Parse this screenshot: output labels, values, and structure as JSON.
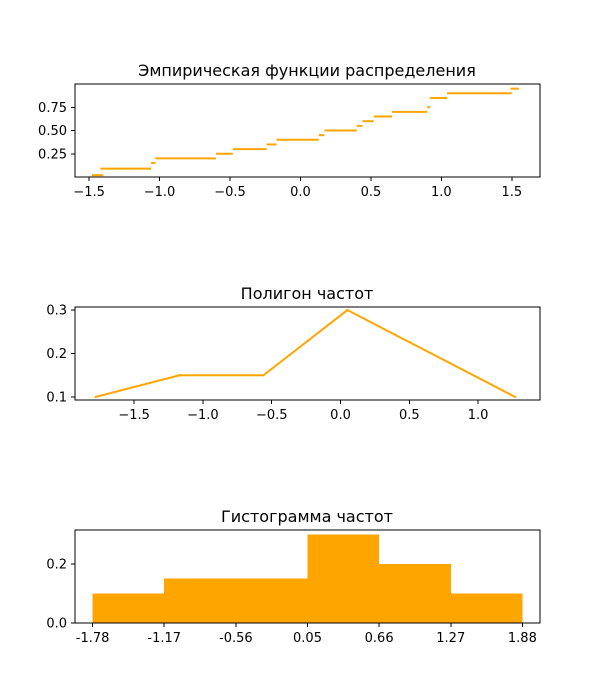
{
  "colors": {
    "series": "#FFA500",
    "axis": "#000000",
    "background": "#ffffff"
  },
  "chart_data": [
    {
      "type": "step",
      "title": "Эмпирическая функции распределения",
      "xlim": [
        -1.6,
        1.7
      ],
      "ylim": [
        0,
        1.0
      ],
      "xticks": [
        -1.5,
        -1.0,
        -0.5,
        0.0,
        0.5,
        1.0,
        1.5
      ],
      "xtick_labels": [
        "−1.5",
        "−1.0",
        "−0.5",
        "0.0",
        "0.5",
        "1.0",
        "1.5"
      ],
      "yticks": [
        0.25,
        0.5,
        0.75
      ],
      "ytick_labels": [
        "0.25",
        "0.50",
        "0.75"
      ],
      "segments": [
        {
          "x0": -1.48,
          "x1": -1.4,
          "y": 0.02
        },
        {
          "x0": -1.42,
          "x1": -1.06,
          "y": 0.09
        },
        {
          "x0": -1.06,
          "x1": -1.03,
          "y": 0.15
        },
        {
          "x0": -1.03,
          "x1": -0.6,
          "y": 0.2
        },
        {
          "x0": -0.6,
          "x1": -0.48,
          "y": 0.25
        },
        {
          "x0": -0.48,
          "x1": -0.24,
          "y": 0.3
        },
        {
          "x0": -0.24,
          "x1": -0.17,
          "y": 0.35
        },
        {
          "x0": -0.17,
          "x1": 0.13,
          "y": 0.4
        },
        {
          "x0": 0.13,
          "x1": 0.17,
          "y": 0.45
        },
        {
          "x0": 0.17,
          "x1": 0.4,
          "y": 0.5
        },
        {
          "x0": 0.4,
          "x1": 0.44,
          "y": 0.55
        },
        {
          "x0": 0.44,
          "x1": 0.52,
          "y": 0.6
        },
        {
          "x0": 0.52,
          "x1": 0.65,
          "y": 0.65
        },
        {
          "x0": 0.65,
          "x1": 0.9,
          "y": 0.7
        },
        {
          "x0": 0.9,
          "x1": 0.92,
          "y": 0.75
        },
        {
          "x0": 0.92,
          "x1": 1.04,
          "y": 0.85
        },
        {
          "x0": 1.04,
          "x1": 1.5,
          "y": 0.9
        },
        {
          "x0": 1.49,
          "x1": 1.55,
          "y": 0.95
        }
      ]
    },
    {
      "type": "line",
      "title": "Полигон частот",
      "xlim": [
        -1.93,
        1.45
      ],
      "ylim": [
        0.093,
        0.307
      ],
      "xticks": [
        -1.5,
        -1.0,
        -0.5,
        0.0,
        0.5,
        1.0
      ],
      "xtick_labels": [
        "−1.5",
        "−1.0",
        "−0.5",
        "0.0",
        "0.5",
        "1.0"
      ],
      "yticks": [
        0.1,
        0.2,
        0.3
      ],
      "ytick_labels": [
        "0.1",
        "0.2",
        "0.3"
      ],
      "x": [
        -1.78,
        -1.17,
        -0.56,
        0.05,
        0.66,
        1.27
      ],
      "y": [
        0.1,
        0.15,
        0.15,
        0.3,
        0.2,
        0.1
      ]
    },
    {
      "type": "bar",
      "title": "Гистограмма частот",
      "xlim": [
        -1.93,
        2.03
      ],
      "ylim": [
        0,
        0.315
      ],
      "xticks": [
        -1.78,
        -1.17,
        -0.56,
        0.05,
        0.66,
        1.27,
        1.88
      ],
      "xtick_labels": [
        "-1.78",
        "-1.17",
        "-0.56",
        "0.05",
        "0.66",
        "1.27",
        "1.88"
      ],
      "yticks": [
        0.0,
        0.2
      ],
      "ytick_labels": [
        "0.0",
        "0.2"
      ],
      "bins": [
        {
          "x0": -1.78,
          "x1": -1.17,
          "value": 0.1
        },
        {
          "x0": -1.17,
          "x1": -0.56,
          "value": 0.15
        },
        {
          "x0": -0.56,
          "x1": 0.05,
          "value": 0.15
        },
        {
          "x0": 0.05,
          "x1": 0.66,
          "value": 0.3
        },
        {
          "x0": 0.66,
          "x1": 1.27,
          "value": 0.2
        },
        {
          "x0": 1.27,
          "x1": 1.88,
          "value": 0.1
        }
      ]
    }
  ]
}
